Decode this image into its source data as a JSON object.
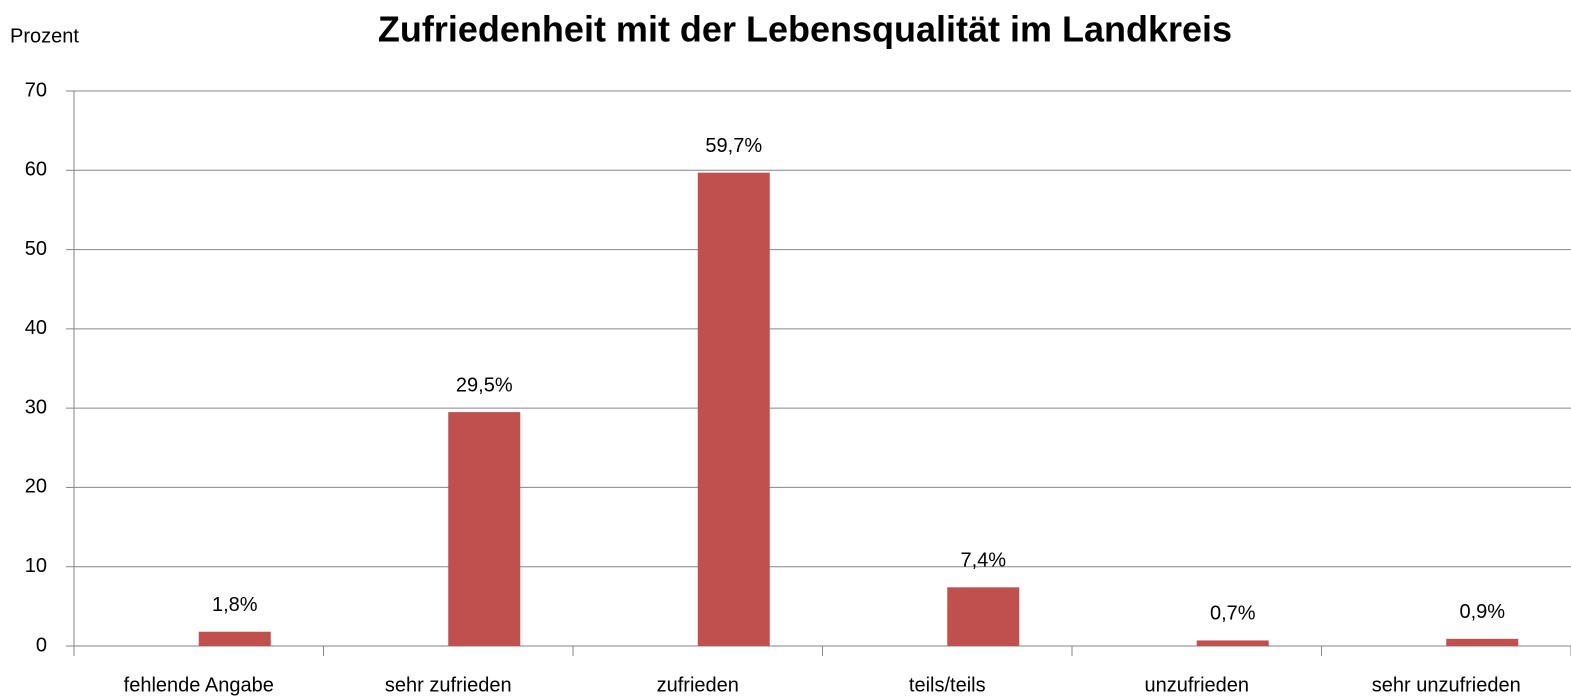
{
  "chart_data": {
    "type": "bar",
    "title": "Zufriedenheit mit der Lebensqualität im Landkreis",
    "y_label": "Prozent",
    "categories": [
      "fehlende Angabe",
      "sehr zufrieden",
      "zufrieden",
      "teils/teils",
      "unzufrieden",
      "sehr unzufrieden"
    ],
    "values": [
      1.8,
      29.5,
      59.7,
      7.4,
      0.7,
      0.9
    ],
    "value_labels": [
      "1,8%",
      "29,5%",
      "59,7%",
      "7,4%",
      "0,7%",
      "0,9%"
    ],
    "color": "#c0504d",
    "ylim": [
      0,
      70
    ],
    "yticks": [
      0,
      10,
      20,
      30,
      40,
      50,
      60,
      70
    ],
    "grid": true
  }
}
